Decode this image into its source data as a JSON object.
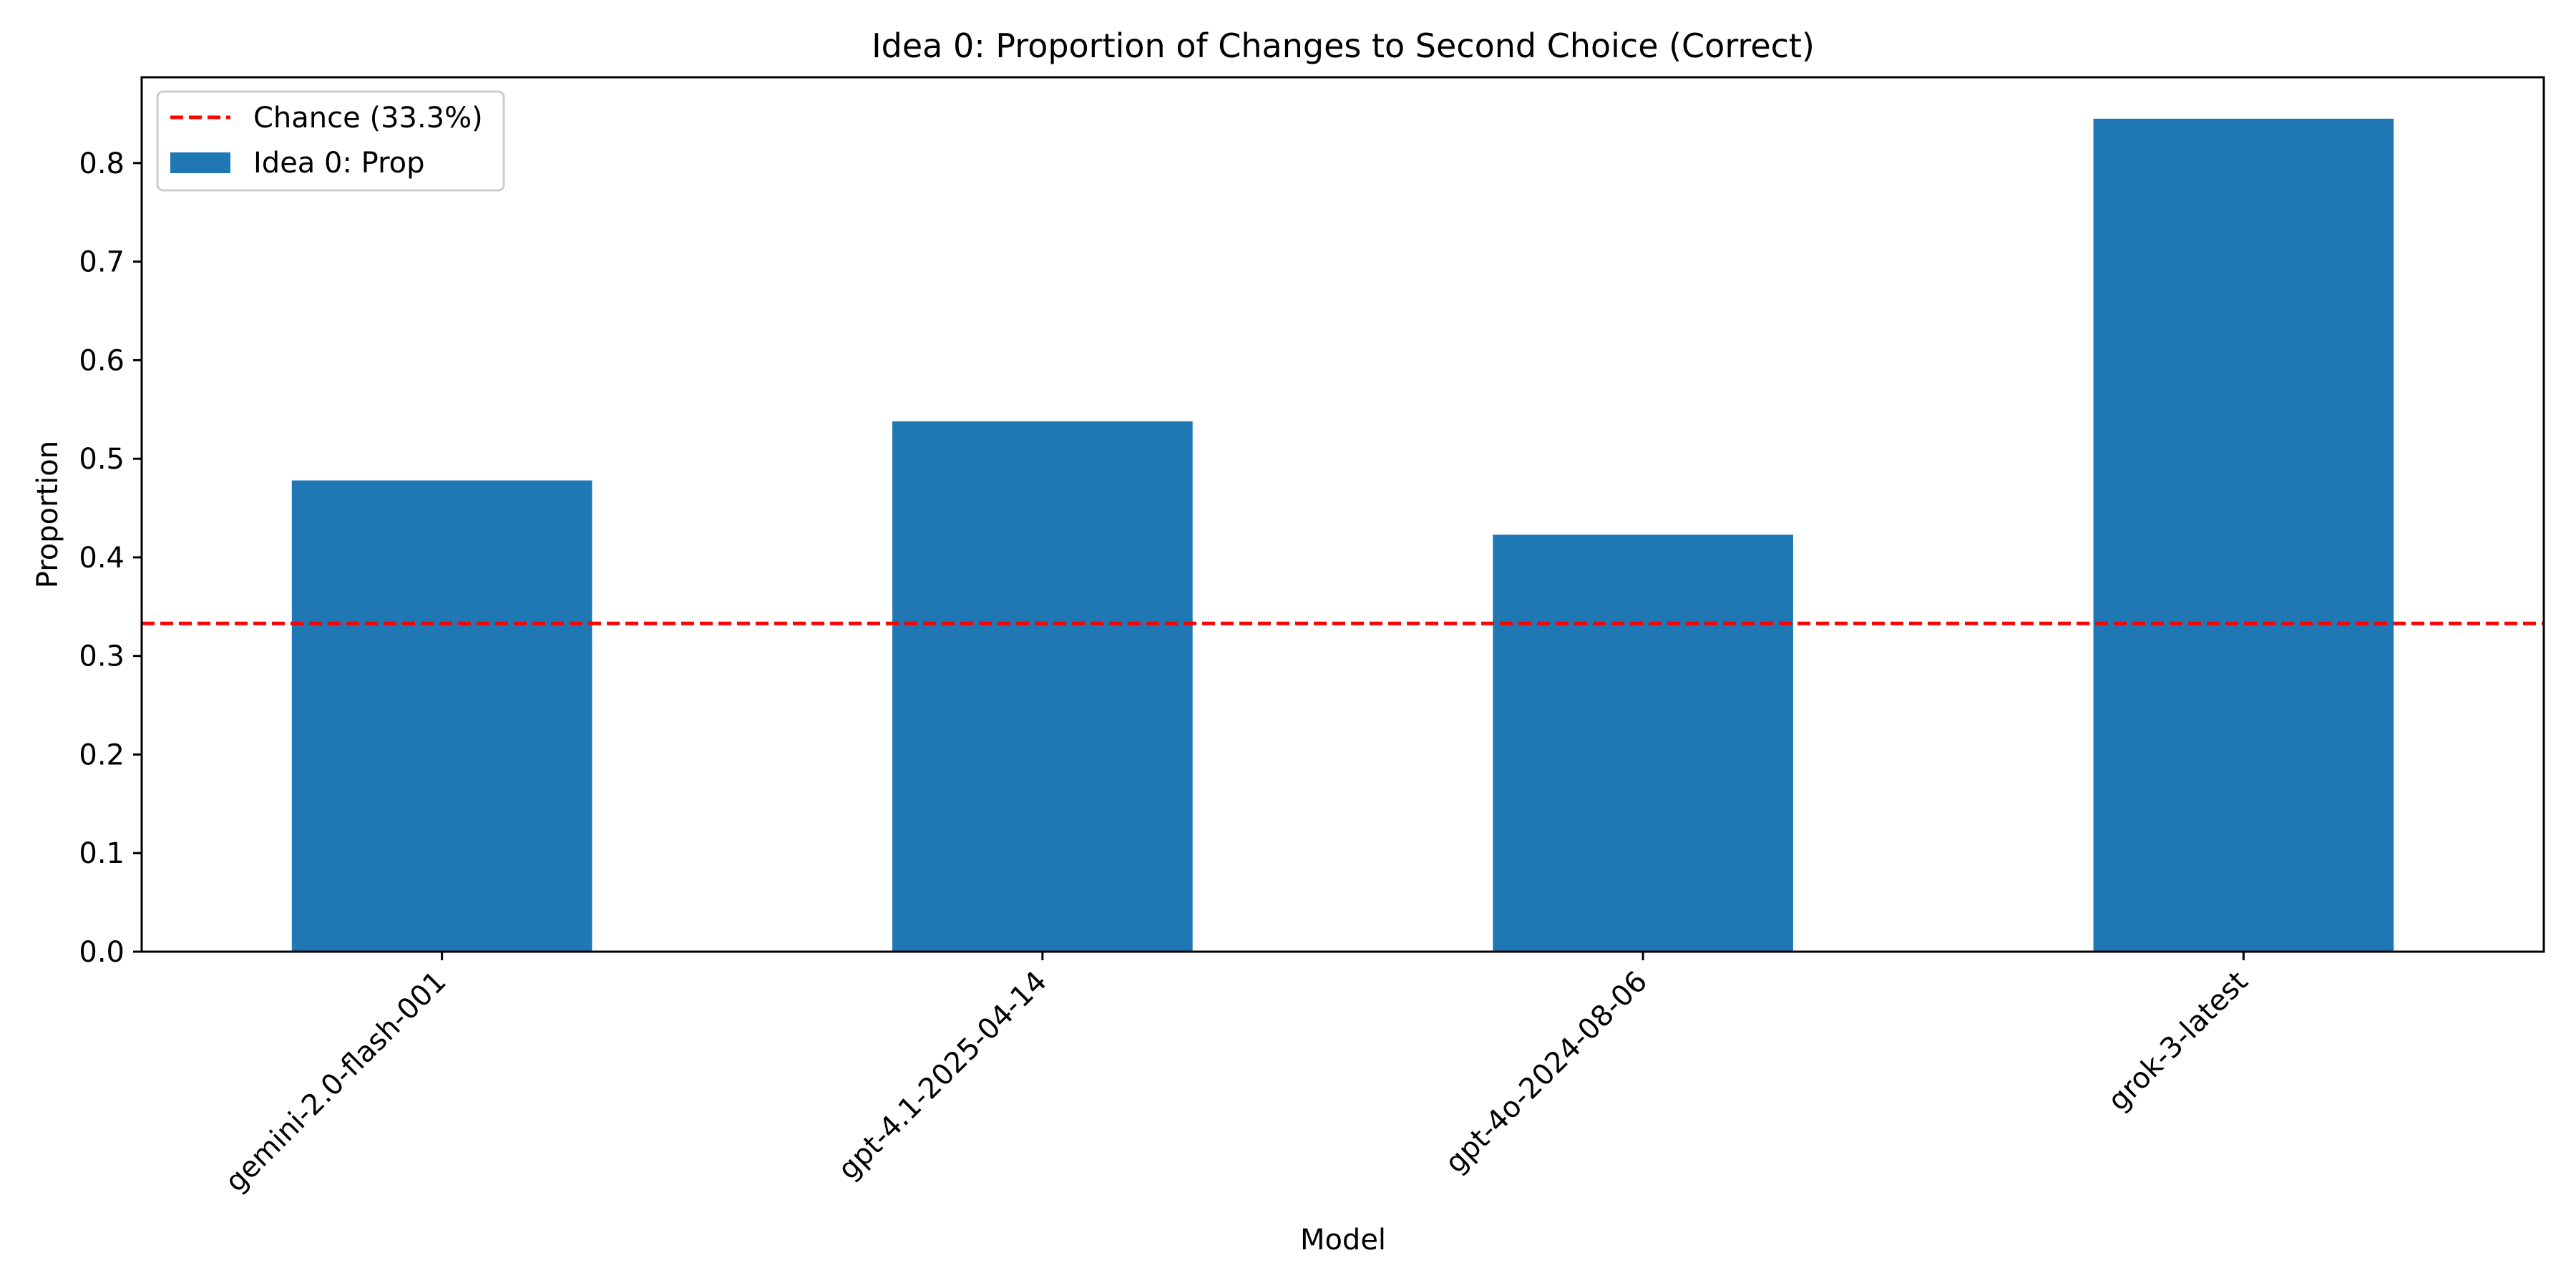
{
  "chart_data": {
    "type": "bar",
    "title": "Idea 0: Proportion of Changes to Second Choice (Correct)",
    "xlabel": "Model",
    "ylabel": "Proportion",
    "categories": [
      "gemini-2.0-flash-001",
      "gpt-4.1-2025-04-14",
      "gpt-4o-2024-08-06",
      "grok-3-latest"
    ],
    "series": [
      {
        "name": "Idea 0: Prop",
        "values": [
          0.478,
          0.538,
          0.423,
          0.845
        ],
        "color": "#1f77b4"
      }
    ],
    "reference_lines": [
      {
        "name": "Chance (33.3%)",
        "y": 0.333,
        "color": "#ff0000",
        "style": "dashed"
      }
    ],
    "ylim": [
      0,
      0.887
    ],
    "yticks": [
      0.0,
      0.1,
      0.2,
      0.3,
      0.4,
      0.5,
      0.6,
      0.7,
      0.8
    ],
    "ytick_labels": [
      "0.0",
      "0.1",
      "0.2",
      "0.3",
      "0.4",
      "0.5",
      "0.6",
      "0.7",
      "0.8"
    ],
    "grid": false,
    "legend": "top-left"
  }
}
